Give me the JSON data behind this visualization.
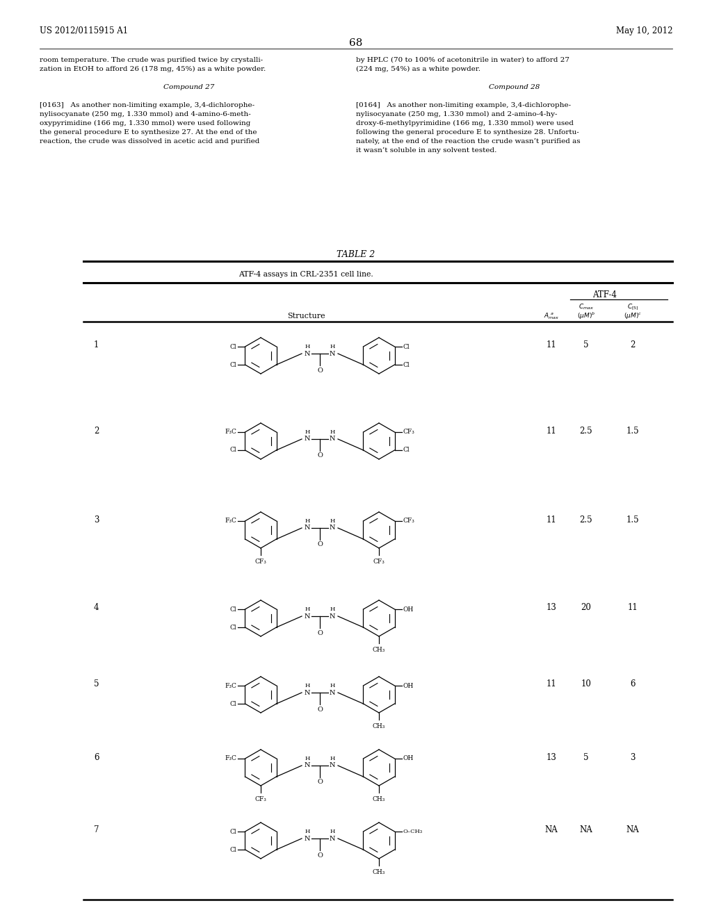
{
  "page_header_left": "US 2012/0115915 A1",
  "page_header_right": "May 10, 2012",
  "page_number": "68",
  "col1_lines": [
    [
      "room temperature. The crude was purified twice by crystalli-",
      "normal"
    ],
    [
      "zation in EtOH to afford 26 (178 mg, 45%) as a white powder.",
      "normal"
    ],
    [
      "",
      "normal"
    ],
    [
      "Compound 27",
      "center"
    ],
    [
      "",
      "normal"
    ],
    [
      "[0163]   As another non-limiting example, 3,4-dichlorophe-",
      "normal"
    ],
    [
      "nylisocyanate (250 mg, 1.330 mmol) and 4-amino-6-meth-",
      "normal"
    ],
    [
      "oxypyrimidine (166 mg, 1.330 mmol) were used following",
      "normal"
    ],
    [
      "the general procedure E to synthesize 27. At the end of the",
      "normal"
    ],
    [
      "reaction, the crude was dissolved in acetic acid and purified",
      "normal"
    ]
  ],
  "col2_lines": [
    [
      "by HPLC (70 to 100% of acetonitrile in water) to afford 27",
      "normal"
    ],
    [
      "(224 mg, 54%) as a white powder.",
      "normal"
    ],
    [
      "",
      "normal"
    ],
    [
      "Compound 28",
      "center"
    ],
    [
      "",
      "normal"
    ],
    [
      "[0164]   As another non-limiting example, 3,4-dichlorophe-",
      "normal"
    ],
    [
      "nylisocyanate (250 mg, 1.330 mmol) and 2-amino-4-hy-",
      "normal"
    ],
    [
      "droxy-6-methylpyrimidine (166 mg, 1.330 mmol) were used",
      "normal"
    ],
    [
      "following the general procedure E to synthesize 28. Unfortu-",
      "normal"
    ],
    [
      "nately, at the end of the reaction the crude wasn’t purified as",
      "normal"
    ],
    [
      "it wasn’t soluble in any solvent tested.",
      "normal"
    ]
  ],
  "table_title": "TABLE 2",
  "table_subtitle": "ATF-4 assays in CRL-2351 cell line.",
  "rows": [
    {
      "num": "1",
      "amax": "11",
      "cmax": "5",
      "c5": "2"
    },
    {
      "num": "2",
      "amax": "11",
      "cmax": "2.5",
      "c5": "1.5"
    },
    {
      "num": "3",
      "amax": "11",
      "cmax": "2.5",
      "c5": "1.5"
    },
    {
      "num": "4",
      "amax": "13",
      "cmax": "20",
      "c5": "11"
    },
    {
      "num": "5",
      "amax": "11",
      "cmax": "10",
      "c5": "6"
    },
    {
      "num": "6",
      "amax": "13",
      "cmax": "5",
      "c5": "3"
    },
    {
      "num": "7",
      "amax": "NA",
      "cmax": "NA",
      "c5": "NA"
    }
  ]
}
